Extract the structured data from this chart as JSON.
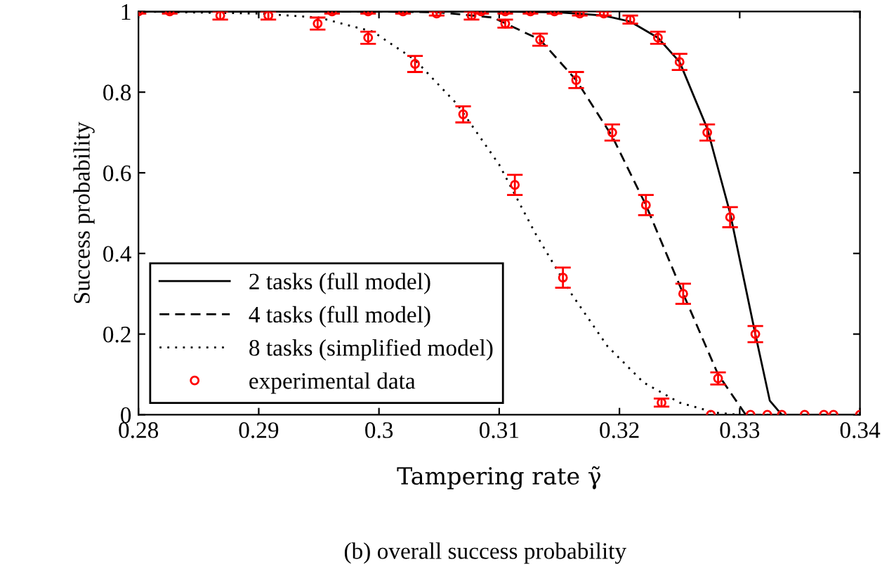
{
  "chart_data": {
    "type": "line",
    "xlabel": "Tampering rate γ̃",
    "ylabel": "Success probability",
    "annotations": [
      "(b) overall success probability"
    ],
    "xlim": [
      0.28,
      0.34
    ],
    "ylim": [
      0,
      1
    ],
    "xticks": [
      0.28,
      0.29,
      0.3,
      0.31,
      0.32,
      0.33,
      0.34
    ],
    "yticks": [
      0,
      0.2,
      0.4,
      0.6,
      0.8,
      1
    ],
    "legend": "bottom left",
    "grid": false,
    "series": [
      {
        "name": "2 tasks (full model)",
        "line_style": "solid",
        "color": "#000000",
        "x": [
          0.28,
          0.3,
          0.31,
          0.315,
          0.3187,
          0.3209,
          0.3232,
          0.325,
          0.3273,
          0.3292,
          0.3313,
          0.3325,
          0.3335,
          0.34
        ],
        "values": [
          1,
          1,
          1,
          0.998,
          0.99,
          0.975,
          0.935,
          0.875,
          0.71,
          0.5,
          0.2,
          0.035,
          0,
          0
        ]
      },
      {
        "name": "4 tasks (full model)",
        "line_style": "dashed",
        "color": "#000000",
        "x": [
          0.28,
          0.3,
          0.305,
          0.3095,
          0.3134,
          0.3164,
          0.3194,
          0.3222,
          0.3253,
          0.3282,
          0.3305,
          0.34
        ],
        "values": [
          1,
          1,
          0.998,
          0.985,
          0.93,
          0.83,
          0.69,
          0.52,
          0.3,
          0.1,
          0,
          0
        ]
      },
      {
        "name": "8 tasks (simplified model)",
        "line_style": "dotted",
        "color": "#000000",
        "x": [
          0.28,
          0.29,
          0.295,
          0.2995,
          0.303,
          0.3065,
          0.31,
          0.313,
          0.316,
          0.319,
          0.322,
          0.325,
          0.328,
          0.33
        ],
        "values": [
          1,
          0.995,
          0.985,
          0.95,
          0.88,
          0.77,
          0.62,
          0.45,
          0.3,
          0.17,
          0.08,
          0.03,
          0.005,
          0
        ]
      },
      {
        "name": "experimental data",
        "type": "scatter",
        "marker": "circle",
        "color": "#ff0000",
        "x": [
          0.28,
          0.2826,
          0.2868,
          0.2908,
          0.2949,
          0.2961,
          0.2991,
          0.2991,
          0.302,
          0.303,
          0.3048,
          0.307,
          0.3077,
          0.3085,
          0.3105,
          0.3105,
          0.3113,
          0.3126,
          0.3134,
          0.3146,
          0.3153,
          0.3164,
          0.3167,
          0.3187,
          0.3194,
          0.3209,
          0.3222,
          0.3232,
          0.3235,
          0.325,
          0.3253,
          0.3273,
          0.3276,
          0.3282,
          0.3292,
          0.3309,
          0.3313,
          0.3323,
          0.3335,
          0.3354,
          0.337,
          0.3378,
          0.34
        ],
        "values": [
          1,
          1,
          0.99,
          0.99,
          0.97,
          1,
          1,
          0.935,
          1,
          0.87,
          0.995,
          0.745,
          0.99,
          1,
          1,
          0.97,
          0.57,
          1,
          0.93,
          1,
          0.34,
          0.83,
          0.995,
          0.995,
          0.7,
          0.98,
          0.52,
          0.935,
          0.03,
          0.875,
          0.3,
          0.7,
          0,
          0.09,
          0.49,
          0,
          0.2,
          0,
          0,
          0,
          0,
          0,
          0
        ],
        "errors": [
          0.005,
          0.005,
          0.01,
          0.01,
          0.015,
          0.005,
          0.005,
          0.015,
          0.005,
          0.02,
          0.005,
          0.02,
          0.01,
          0.005,
          0.005,
          0.01,
          0.025,
          0.005,
          0.015,
          0.005,
          0.025,
          0.02,
          0.005,
          0.005,
          0.02,
          0.01,
          0.025,
          0.015,
          0.01,
          0.02,
          0.025,
          0.02,
          null,
          0.015,
          0.025,
          null,
          0.02,
          null,
          null,
          null,
          null,
          null,
          null
        ]
      }
    ]
  }
}
